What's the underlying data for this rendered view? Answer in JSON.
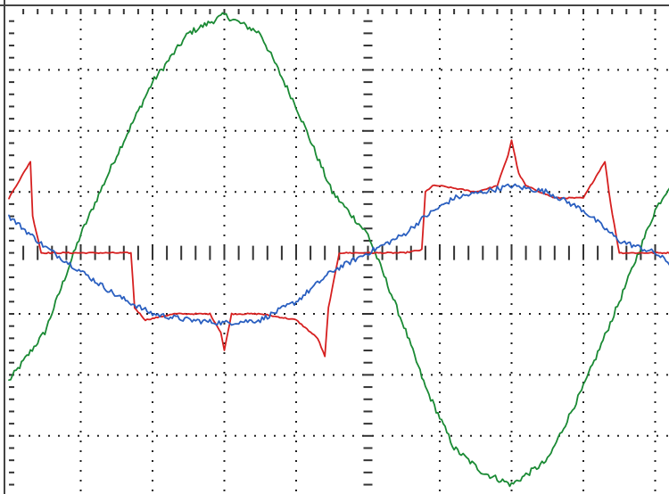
{
  "chart_data": {
    "type": "line",
    "title": "",
    "xlabel": "",
    "ylabel": "",
    "divisions": {
      "x": 10,
      "y": 8
    },
    "xlim": [
      0,
      9.35
    ],
    "ylim": [
      -4,
      4
    ],
    "grid": true,
    "grid_style": "dotted",
    "center_axes": true,
    "series": [
      {
        "color": "#1a8a34",
        "noise": 0.1,
        "x": [
          0,
          0.5,
          1,
          1.5,
          2,
          2.5,
          3,
          3.5,
          4,
          4.5,
          5,
          5.5,
          5.8,
          6.2,
          6.6,
          7,
          7.5,
          8,
          8.5,
          9,
          9.35
        ],
        "y": [
          -2.1,
          -1.3,
          0.3,
          1.6,
          2.8,
          3.6,
          3.9,
          3.6,
          2.4,
          1.0,
          0.3,
          -1.2,
          -2.2,
          -3.2,
          -3.6,
          -3.8,
          -3.4,
          -2.2,
          -0.8,
          0.7,
          1.4
        ]
      },
      {
        "color": "#d62020",
        "noise": 0.02,
        "x": [
          0,
          0.3,
          0.33,
          0.45,
          1.0,
          1.4,
          1.7,
          1.75,
          1.9,
          2.3,
          2.8,
          2.95,
          3.0,
          3.05,
          3.1,
          3.5,
          4.0,
          4.3,
          4.4,
          4.45,
          4.6,
          5.0,
          5.5,
          5.75,
          5.8,
          5.9,
          6.0,
          6.5,
          6.8,
          6.95,
          7.0,
          7.1,
          7.2,
          7.6,
          8.0,
          8.3,
          8.38,
          8.5,
          8.6,
          9.0,
          9.35
        ],
        "y": [
          0.9,
          1.5,
          0.6,
          0.0,
          0.0,
          0.0,
          0.0,
          -0.9,
          -1.1,
          -1.0,
          -1.0,
          -1.3,
          -1.6,
          -1.3,
          -1.0,
          -1.0,
          -1.1,
          -1.4,
          -1.7,
          -0.9,
          0.0,
          0.0,
          0.0,
          0.05,
          1.0,
          1.1,
          1.1,
          1.0,
          1.1,
          1.6,
          1.85,
          1.3,
          1.1,
          0.9,
          0.9,
          1.5,
          0.8,
          0.0,
          0.0,
          0.0,
          0.0
        ]
      },
      {
        "color": "#2a5fc0",
        "noise": 0.09,
        "x": [
          0,
          0.5,
          1,
          1.5,
          2,
          2.5,
          3,
          3.5,
          4,
          4.5,
          5,
          5.5,
          5.8,
          6.2,
          6.6,
          7,
          7.5,
          8,
          8.5,
          9,
          9.35
        ],
        "y": [
          0.6,
          0.1,
          -0.3,
          -0.7,
          -1.0,
          -1.1,
          -1.15,
          -1.1,
          -0.8,
          -0.3,
          0.0,
          0.3,
          0.6,
          0.9,
          1.0,
          1.1,
          1.0,
          0.7,
          0.2,
          0.0,
          -0.3
        ]
      }
    ]
  }
}
